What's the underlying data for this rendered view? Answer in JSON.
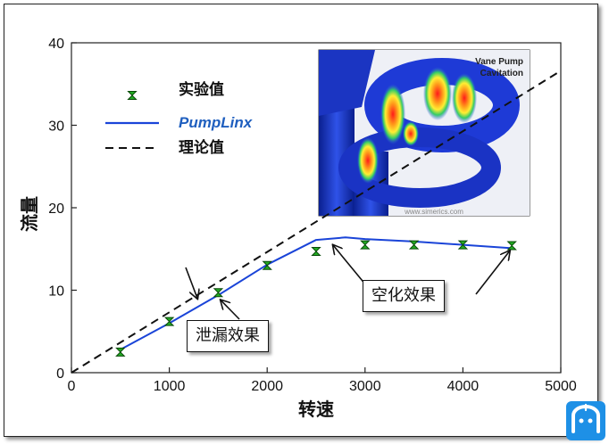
{
  "chart_data": {
    "type": "line",
    "title": "",
    "xlabel": "转速",
    "ylabel": "流量",
    "xlim": [
      0,
      5000
    ],
    "ylim": [
      0,
      40
    ],
    "xticks": [
      0,
      1000,
      2000,
      3000,
      4000,
      5000
    ],
    "yticks": [
      0,
      10,
      20,
      30,
      40
    ],
    "grid": false,
    "legend": "top-left",
    "series": [
      {
        "name": "实验值",
        "style": "markers",
        "color": "#22aa22",
        "x": [
          500,
          1000,
          1500,
          2000,
          2500,
          3000,
          3500,
          4000,
          4500
        ],
        "y": [
          2.5,
          6.2,
          9.7,
          13.0,
          14.7,
          15.5,
          15.5,
          15.5,
          15.4
        ]
      },
      {
        "name": "PumpLinx",
        "style": "solid",
        "color": "#1a44d8",
        "x": [
          500,
          1000,
          1500,
          2000,
          2500,
          2800,
          3000,
          3500,
          4000,
          4500
        ],
        "y": [
          2.8,
          6.0,
          9.4,
          13.1,
          16.1,
          16.4,
          16.2,
          15.9,
          15.5,
          15.1
        ]
      },
      {
        "name": "理论值",
        "style": "dashed",
        "color": "#111111",
        "x": [
          0,
          5000
        ],
        "y": [
          0,
          36.6
        ]
      }
    ],
    "annotations": [
      {
        "text": "泄漏效果",
        "points_to": [
          [
            1300,
            8.6
          ],
          [
            1500,
            9.1
          ]
        ]
      },
      {
        "text": "空化效果",
        "points_to": [
          [
            2650,
            15.8
          ],
          [
            4500,
            15.1
          ]
        ]
      }
    ],
    "inset_image": {
      "label_line1": "Vane Pump",
      "label_line2": "Cavitation",
      "url_text": "www.simerics.com"
    }
  },
  "logo_icon": "person-logo-icon"
}
